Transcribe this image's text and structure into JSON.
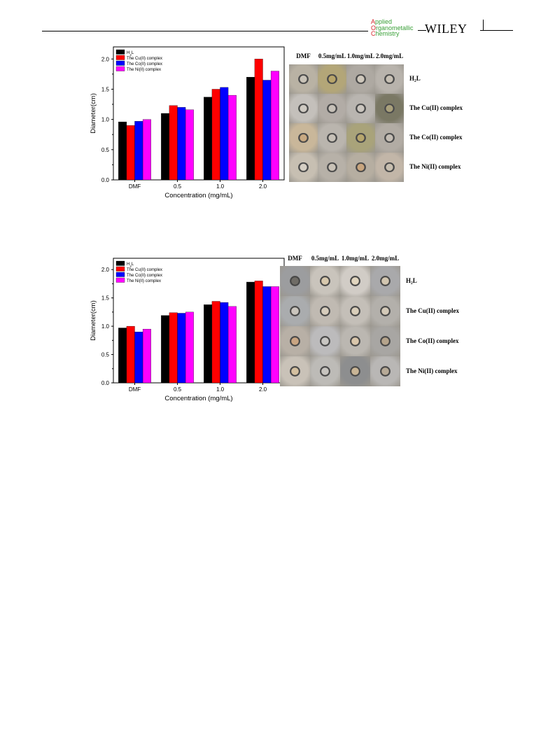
{
  "header": {
    "journal_lines": [
      {
        "first": "A",
        "rest": "pplied"
      },
      {
        "first": "O",
        "rest": "rganometallic"
      },
      {
        "first": "C",
        "rest": "hemistry"
      }
    ],
    "publisher": "WILEY"
  },
  "chart_data": [
    {
      "type": "bar",
      "title": "",
      "xlabel": "Concentration (mg/mL)",
      "ylabel": "Diameter(cm)",
      "ylim": [
        0,
        2.2
      ],
      "yticks": [
        "0.0",
        "0.5",
        "1.0",
        "1.5",
        "2.0"
      ],
      "categories": [
        "DMF",
        "0.5",
        "1.0",
        "2.0"
      ],
      "legend_position": "top-left",
      "series": [
        {
          "name": "H2L",
          "color": "#000000",
          "values": [
            0.96,
            1.1,
            1.37,
            1.7
          ]
        },
        {
          "name": "The Cu(II) complex",
          "color": "#ff0000",
          "values": [
            0.9,
            1.23,
            1.5,
            2.0
          ]
        },
        {
          "name": "The Co(II) complex",
          "color": "#0000ff",
          "values": [
            0.97,
            1.2,
            1.53,
            1.65
          ]
        },
        {
          "name": "The Ni(II) complex",
          "color": "#ff00ff",
          "values": [
            1.0,
            1.16,
            1.4,
            1.8
          ]
        }
      ]
    },
    {
      "type": "bar",
      "title": "",
      "xlabel": "Concentration (mg/mL)",
      "ylabel": "Diameter(cm)",
      "ylim": [
        0,
        2.2
      ],
      "yticks": [
        "0.0",
        "0.5",
        "1.0",
        "1.5",
        "2.0"
      ],
      "categories": [
        "DMF",
        "0.5",
        "1.0",
        "2.0"
      ],
      "legend_position": "top-left",
      "series": [
        {
          "name": "H2L",
          "color": "#000000",
          "values": [
            0.97,
            1.19,
            1.38,
            1.78
          ]
        },
        {
          "name": "The Cu(II) complex",
          "color": "#ff0000",
          "values": [
            1.0,
            1.24,
            1.44,
            1.8
          ]
        },
        {
          "name": "The Co(II) complex",
          "color": "#0000ff",
          "values": [
            0.9,
            1.23,
            1.42,
            1.7
          ]
        },
        {
          "name": "The Ni(II) complex",
          "color": "#ff00ff",
          "values": [
            0.95,
            1.25,
            1.35,
            1.7
          ]
        }
      ]
    }
  ],
  "plates": [
    {
      "columns": [
        "DMF",
        "0.5mg/mL",
        "1.0mg/mL",
        "2.0mg/mL"
      ],
      "rows": [
        "H₂L",
        "The Cu(II) complex",
        "The Co(II) complex",
        "The Ni(II) complex"
      ]
    },
    {
      "columns": [
        "DMF",
        "0.5mg/mL",
        "1.0mg/mL",
        "2.0mg/mL"
      ],
      "rows": [
        "H₂L",
        "The Cu(II) complex",
        "The Co(II) complex",
        "The Ni(II) complex"
      ]
    }
  ]
}
